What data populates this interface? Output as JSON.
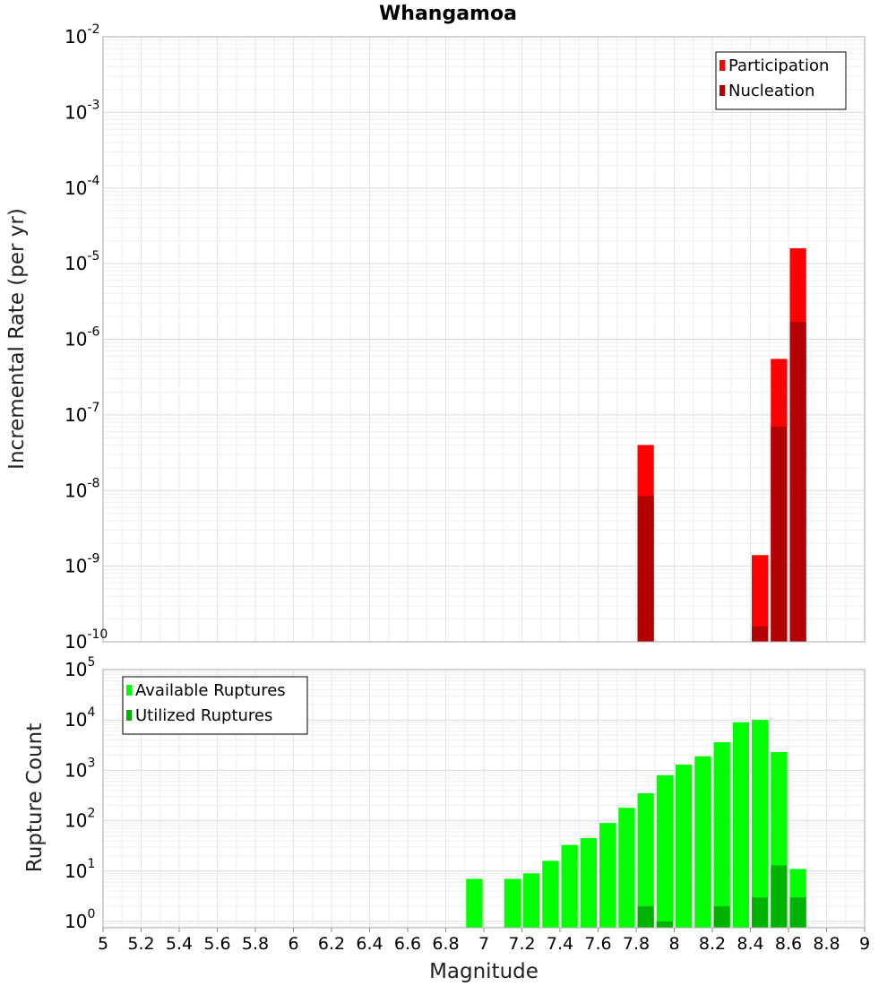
{
  "chart_data": [
    {
      "type": "bar",
      "title": "Whangamoa",
      "ylabel": "Incremental Rate (per yr)",
      "xlabel": "",
      "yscale": "log",
      "ylim": [
        1e-10,
        0.01
      ],
      "xlim": [
        5,
        9
      ],
      "y_ticks": [
        {
          "base": "10",
          "exp": "-10"
        },
        {
          "base": "10",
          "exp": "-9"
        },
        {
          "base": "10",
          "exp": "-8"
        },
        {
          "base": "10",
          "exp": "-7"
        },
        {
          "base": "10",
          "exp": "-6"
        },
        {
          "base": "10",
          "exp": "-5"
        },
        {
          "base": "10",
          "exp": "-4"
        },
        {
          "base": "10",
          "exp": "-3"
        },
        {
          "base": "10",
          "exp": "-2"
        }
      ],
      "legend_position": "top-right",
      "bar_width": 0.1,
      "series": [
        {
          "name": "Participation",
          "color": "#ff0000",
          "x": [
            7.85,
            8.45,
            8.55,
            8.65
          ],
          "values": [
            4e-08,
            1.4e-09,
            5.5e-07,
            1.6e-05
          ]
        },
        {
          "name": "Nucleation",
          "color": "#b30000",
          "x": [
            7.85,
            8.45,
            8.55,
            8.65
          ],
          "values": [
            8.5e-09,
            1.6e-10,
            7e-08,
            1.7e-06
          ]
        }
      ]
    },
    {
      "type": "bar",
      "title": "",
      "ylabel": "Rupture Count",
      "xlabel": "Magnitude",
      "yscale": "log",
      "ylim": [
        0.75,
        100000.0
      ],
      "xlim": [
        5,
        9
      ],
      "y_ticks": [
        {
          "base": "10",
          "exp": "0"
        },
        {
          "base": "10",
          "exp": "1"
        },
        {
          "base": "10",
          "exp": "2"
        },
        {
          "base": "10",
          "exp": "3"
        },
        {
          "base": "10",
          "exp": "4"
        },
        {
          "base": "10",
          "exp": "5"
        }
      ],
      "x_ticks": [
        "5",
        "5.2",
        "5.4",
        "5.6",
        "5.8",
        "6",
        "6.2",
        "6.4",
        "6.6",
        "6.8",
        "7",
        "7.2",
        "7.4",
        "7.6",
        "7.8",
        "8",
        "8.2",
        "8.4",
        "8.6",
        "8.8",
        "9"
      ],
      "legend_position": "top-left",
      "bar_width": 0.1,
      "series": [
        {
          "name": "Available Ruptures",
          "color": "#00ff00",
          "x": [
            6.95,
            7.15,
            7.25,
            7.35,
            7.45,
            7.55,
            7.65,
            7.75,
            7.85,
            7.95,
            8.05,
            8.15,
            8.25,
            8.35,
            8.45,
            8.55,
            8.65
          ],
          "values": [
            7,
            7,
            9,
            16,
            33,
            45,
            90,
            180,
            350,
            800,
            1300,
            1900,
            3600,
            9000,
            10000,
            2300,
            11
          ]
        },
        {
          "name": "Utilized Ruptures",
          "color": "#00b300",
          "x": [
            7.85,
            7.95,
            8.25,
            8.45,
            8.55,
            8.65
          ],
          "values": [
            2,
            1,
            2,
            3,
            13,
            3
          ]
        }
      ]
    }
  ]
}
